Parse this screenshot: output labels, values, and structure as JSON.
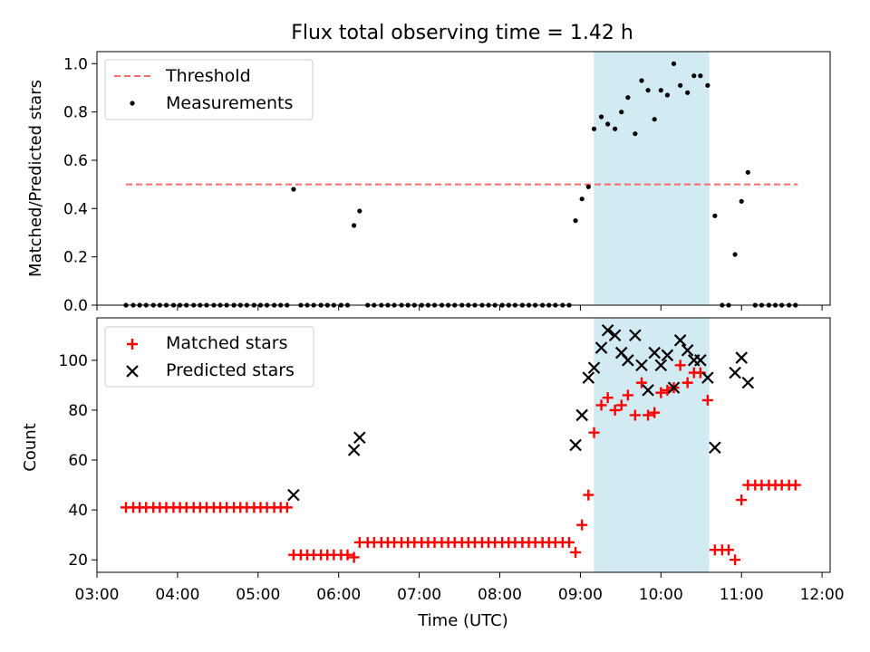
{
  "chart_data": [
    {
      "type": "scatter",
      "title": "Flux total observing time = 1.42 h",
      "xlabel": "",
      "ylabel": "Matched/Predicted stars",
      "ylim": [
        0,
        1.05
      ],
      "yticks": [
        0.0,
        0.2,
        0.4,
        0.6,
        0.8,
        1.0
      ],
      "ytick_labels": [
        "0.0",
        "0.2",
        "0.4",
        "0.6",
        "0.8",
        "1.0"
      ],
      "x_unit": "hours UTC",
      "xlim": [
        3.0,
        12.1
      ],
      "legend_position": "top-left",
      "highlight_span": {
        "x": [
          9.167,
          10.6
        ],
        "color": "#add8e6"
      },
      "series": [
        {
          "name": "Threshold",
          "style": "dashed-line",
          "color": "#ff6b6b",
          "x": [
            3.36,
            11.7
          ],
          "y": [
            0.5,
            0.5
          ]
        },
        {
          "name": "Measurements",
          "style": "dot",
          "color": "#000000",
          "x": [
            3.36,
            3.45,
            3.53,
            3.61,
            3.7,
            3.78,
            3.86,
            3.95,
            4.03,
            4.11,
            4.2,
            4.28,
            4.36,
            4.45,
            4.53,
            4.61,
            4.7,
            4.78,
            4.86,
            4.95,
            5.03,
            5.11,
            5.2,
            5.28,
            5.36,
            5.44,
            5.53,
            5.61,
            5.69,
            5.78,
            5.86,
            5.94,
            6.03,
            6.11,
            6.19,
            6.26,
            6.36,
            6.44,
            6.53,
            6.61,
            6.69,
            6.78,
            6.86,
            6.94,
            7.03,
            7.11,
            7.19,
            7.28,
            7.36,
            7.44,
            7.53,
            7.61,
            7.69,
            7.78,
            7.86,
            7.94,
            8.03,
            8.11,
            8.19,
            8.28,
            8.36,
            8.44,
            8.53,
            8.61,
            8.69,
            8.78,
            8.86,
            8.94,
            9.02,
            9.1,
            9.17,
            9.26,
            9.34,
            9.43,
            9.51,
            9.59,
            9.68,
            9.76,
            9.84,
            9.92,
            10.0,
            10.08,
            10.16,
            10.24,
            10.33,
            10.41,
            10.49,
            10.58,
            10.67,
            10.76,
            10.84,
            10.92,
            11.0,
            11.08,
            11.17,
            11.25,
            11.34,
            11.42,
            11.5,
            11.59,
            11.67
          ],
          "y": [
            0,
            0,
            0,
            0,
            0,
            0,
            0,
            0,
            0,
            0,
            0,
            0,
            0,
            0,
            0,
            0,
            0,
            0,
            0,
            0,
            0,
            0,
            0,
            0,
            0,
            0.48,
            0,
            0,
            0,
            0,
            0,
            0,
            0,
            0,
            0.33,
            0.39,
            0,
            0,
            0,
            0,
            0,
            0,
            0,
            0,
            0,
            0,
            0,
            0,
            0,
            0,
            0,
            0,
            0,
            0,
            0,
            0,
            0,
            0,
            0,
            0,
            0,
            0,
            0,
            0,
            0,
            0,
            0,
            0.35,
            0.44,
            0.49,
            0.73,
            0.78,
            0.75,
            0.73,
            0.8,
            0.86,
            0.71,
            0.93,
            0.89,
            0.77,
            0.89,
            0.87,
            1.0,
            0.91,
            0.88,
            0.95,
            0.95,
            0.91,
            0.37,
            0,
            0,
            0.21,
            0.43,
            0.55,
            0,
            0,
            0,
            0,
            0,
            0,
            0
          ]
        }
      ]
    },
    {
      "type": "scatter",
      "title": "",
      "xlabel": "Time (UTC)",
      "ylabel": "Count",
      "ylim": [
        15,
        117
      ],
      "yticks": [
        20,
        40,
        60,
        80,
        100
      ],
      "ytick_labels": [
        "20",
        "40",
        "60",
        "80",
        "100"
      ],
      "x_unit": "hours UTC",
      "xlim": [
        3.0,
        12.1
      ],
      "xticks": [
        3,
        4,
        5,
        6,
        7,
        8,
        9,
        10,
        11,
        12
      ],
      "xtick_labels": [
        "03:00",
        "04:00",
        "05:00",
        "06:00",
        "07:00",
        "08:00",
        "09:00",
        "10:00",
        "11:00",
        "12:00"
      ],
      "legend_position": "top-left",
      "highlight_span": {
        "x": [
          9.167,
          10.6
        ],
        "color": "#add8e6"
      },
      "series": [
        {
          "name": "Matched stars",
          "style": "plus",
          "color": "#ff0000",
          "x": [
            3.36,
            3.45,
            3.53,
            3.61,
            3.7,
            3.78,
            3.86,
            3.95,
            4.03,
            4.11,
            4.2,
            4.28,
            4.36,
            4.45,
            4.53,
            4.61,
            4.7,
            4.78,
            4.86,
            4.95,
            5.03,
            5.11,
            5.2,
            5.28,
            5.36,
            5.44,
            5.53,
            5.61,
            5.69,
            5.78,
            5.86,
            5.94,
            6.03,
            6.11,
            6.19,
            6.26,
            6.36,
            6.44,
            6.53,
            6.61,
            6.69,
            6.78,
            6.86,
            6.94,
            7.03,
            7.11,
            7.19,
            7.28,
            7.36,
            7.44,
            7.53,
            7.61,
            7.69,
            7.78,
            7.86,
            7.94,
            8.03,
            8.11,
            8.19,
            8.28,
            8.36,
            8.44,
            8.53,
            8.61,
            8.69,
            8.78,
            8.86,
            8.94,
            9.02,
            9.1,
            9.17,
            9.26,
            9.34,
            9.43,
            9.51,
            9.59,
            9.68,
            9.76,
            9.84,
            9.92,
            10.0,
            10.08,
            10.16,
            10.24,
            10.33,
            10.41,
            10.49,
            10.58,
            10.67,
            10.76,
            10.84,
            10.92,
            11.0,
            11.08,
            11.17,
            11.25,
            11.34,
            11.42,
            11.5,
            11.59,
            11.67
          ],
          "y": [
            41,
            41,
            41,
            41,
            41,
            41,
            41,
            41,
            41,
            41,
            41,
            41,
            41,
            41,
            41,
            41,
            41,
            41,
            41,
            41,
            41,
            41,
            41,
            41,
            41,
            22,
            22,
            22,
            22,
            22,
            22,
            22,
            22,
            22,
            21,
            27,
            27,
            27,
            27,
            27,
            27,
            27,
            27,
            27,
            27,
            27,
            27,
            27,
            27,
            27,
            27,
            27,
            27,
            27,
            27,
            27,
            27,
            27,
            27,
            27,
            27,
            27,
            27,
            27,
            27,
            27,
            27,
            23,
            34,
            46,
            71,
            82,
            85,
            80,
            82,
            86,
            78,
            91,
            78,
            79,
            87,
            88,
            89,
            98,
            91,
            95,
            95,
            84,
            24,
            24,
            24,
            20,
            44,
            50,
            50,
            50,
            50,
            50,
            50,
            50,
            50
          ]
        },
        {
          "name": "Predicted stars",
          "style": "x",
          "color": "#000000",
          "x": [
            5.44,
            6.19,
            6.26,
            8.94,
            9.02,
            9.1,
            9.17,
            9.26,
            9.34,
            9.43,
            9.51,
            9.59,
            9.68,
            9.76,
            9.84,
            9.92,
            10.0,
            10.08,
            10.16,
            10.24,
            10.33,
            10.41,
            10.49,
            10.58,
            10.67,
            10.92,
            11.0,
            11.08
          ],
          "y": [
            46,
            64,
            69,
            66,
            78,
            93,
            97,
            105,
            112,
            110,
            103,
            100,
            110,
            98,
            88,
            103,
            98,
            102,
            89,
            108,
            104,
            100,
            100,
            93,
            65,
            95,
            101,
            91
          ]
        }
      ]
    }
  ]
}
